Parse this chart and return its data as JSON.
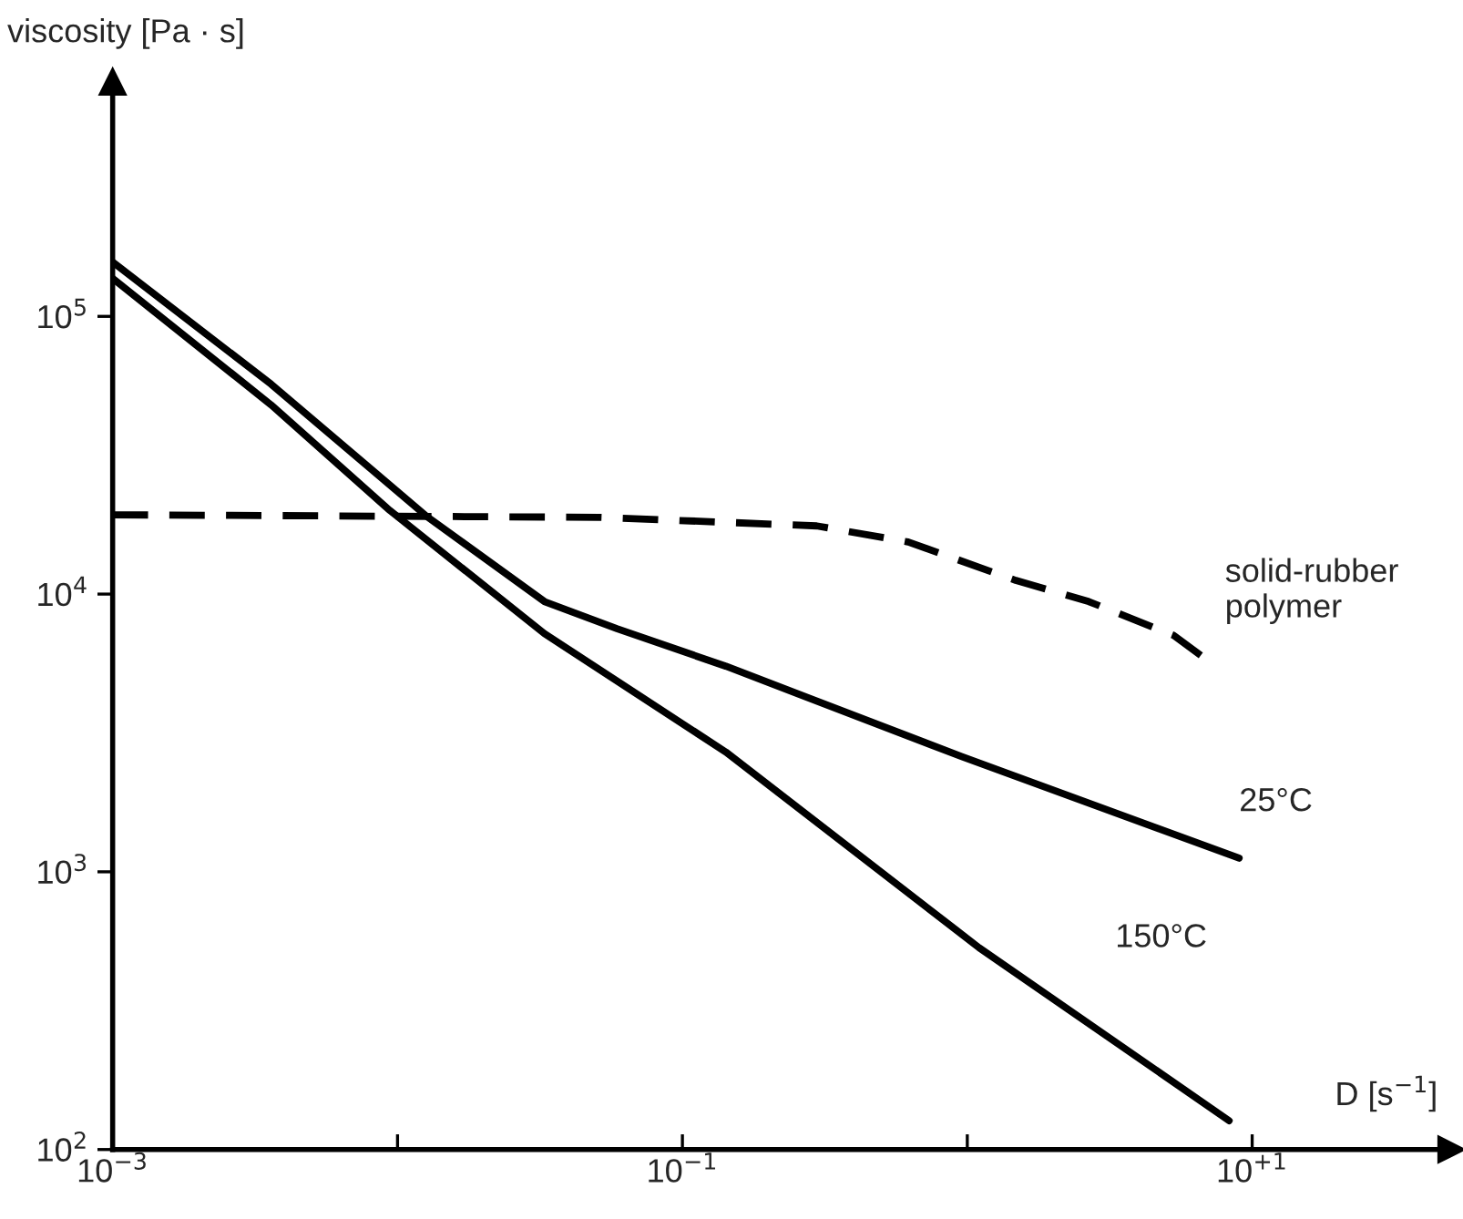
{
  "chart_data": {
    "type": "line",
    "xlabel": "D [s$^{−1}$]",
    "ylabel": "viscosity [Pa · s]",
    "log": "xy",
    "xlim": [
      0.001,
      50
    ],
    "ylim": [
      100,
      700000
    ],
    "xticks": [
      {
        "value": 0.001,
        "label": "10$^{−3}$"
      },
      {
        "value": 0.01,
        "label": null
      },
      {
        "value": 0.1,
        "label": "10$^{−1}$"
      },
      {
        "value": 1,
        "label": null
      },
      {
        "value": 10,
        "label": "10$^{+1}$"
      }
    ],
    "yticks": [
      {
        "value": 100,
        "label": "10$^{2}$"
      },
      {
        "value": 1000,
        "label": "10$^{3}$"
      },
      {
        "value": 10000,
        "label": "10$^{4}$"
      },
      {
        "value": 100000,
        "label": "10$^{5}$"
      }
    ],
    "grid": false,
    "legend": false,
    "marker": "none",
    "series": [
      {
        "name": "solid-rubber\npolymer",
        "color": "#000000",
        "line_style": "dashed",
        "x": [
          0.001,
          0.051,
          0.296,
          0.62,
          1.48,
          2.67,
          5.3,
          7.1
        ],
        "values": [
          19300,
          18900,
          17600,
          15400,
          11200,
          9400,
          7100,
          5700
        ]
      },
      {
        "name": "25°C",
        "color": "#000000",
        "line_style": "solid",
        "x": [
          0.001,
          0.0036,
          0.0127,
          0.0328,
          0.059,
          0.142,
          0.955,
          9.0
        ],
        "values": [
          157000,
          57000,
          19000,
          9400,
          7500,
          5500,
          2600,
          1120
        ]
      },
      {
        "name": "150°C",
        "color": "#000000",
        "line_style": "solid",
        "x": [
          0.001,
          0.0036,
          0.0094,
          0.0328,
          0.142,
          1.1,
          8.3
        ],
        "values": [
          137000,
          48000,
          20000,
          7200,
          2700,
          533,
          127
        ]
      }
    ]
  }
}
